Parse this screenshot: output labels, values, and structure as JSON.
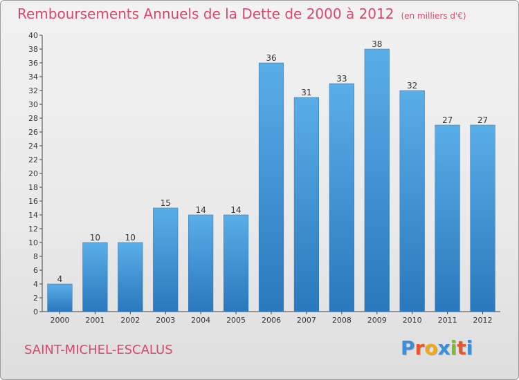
{
  "title": "Remboursements Annuels de la Dette de 2000 à 2012",
  "subtitle": "(en milliers d'€)",
  "commune": "SAINT-MICHEL-ESCALUS",
  "logo": {
    "letters": [
      "P",
      "r",
      "o",
      "x",
      "i",
      "t",
      "i"
    ],
    "colors": [
      "#3b8fd6",
      "#e8572b",
      "#f2a81d",
      "#3b8fd6",
      "#7bbf2a",
      "#e8572b",
      "#3b8fd6"
    ]
  },
  "colors": {
    "bar_light": "#5aaee8",
    "bar_dark": "#2a78bd",
    "title": "#d9486b"
  },
  "chart_data": {
    "type": "bar",
    "categories": [
      "2000",
      "2001",
      "2002",
      "2003",
      "2004",
      "2005",
      "2006",
      "2007",
      "2008",
      "2009",
      "2010",
      "2011",
      "2012"
    ],
    "values": [
      4,
      10,
      10,
      15,
      14,
      14,
      36,
      31,
      33,
      38,
      32,
      27,
      27
    ],
    "data_labels": [
      "4",
      "10",
      "10",
      "15",
      "14",
      "14",
      "36",
      "31",
      "33",
      "38",
      "32",
      "27",
      "27"
    ],
    "y_ticks": [
      "0",
      "2",
      "4",
      "6",
      "8",
      "10",
      "12",
      "14",
      "16",
      "18",
      "20",
      "22",
      "24",
      "26",
      "28",
      "30",
      "32",
      "34",
      "36",
      "38",
      "40"
    ],
    "ylim": [
      0,
      40
    ],
    "grid": false,
    "legend": "none"
  }
}
